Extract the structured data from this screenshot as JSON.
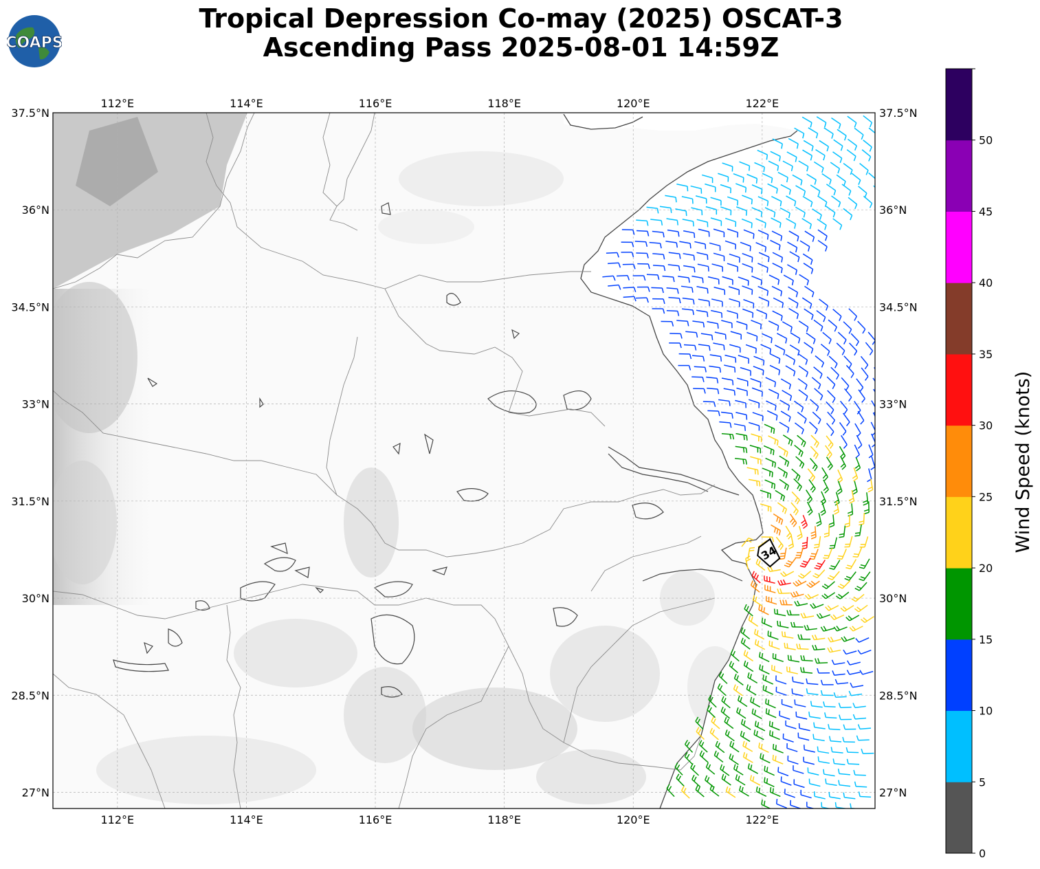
{
  "title": {
    "line1": "Tropical Depression Co-may (2025) OSCAT-3",
    "line2": "Ascending Pass 2025-08-01 14:59Z"
  },
  "logo": {
    "text": "COAPS"
  },
  "map": {
    "lon_range": [
      111.0,
      123.75
    ],
    "lat_range": [
      26.75,
      37.5
    ],
    "lon_ticks": [
      "112°E",
      "114°E",
      "116°E",
      "118°E",
      "120°E",
      "122°E"
    ],
    "lat_ticks": [
      "37.5°N",
      "36°N",
      "34.5°N",
      "33°N",
      "31.5°N",
      "30°N",
      "28.5°N",
      "27°N"
    ],
    "grid": true,
    "storm_marker": {
      "label": "34",
      "lon": 122.1,
      "lat": 30.7
    }
  },
  "colorbar": {
    "label": "Wind Speed (knots)",
    "ticks": [
      "0",
      "5",
      "10",
      "15",
      "20",
      "25",
      "30",
      "35",
      "40",
      "45",
      "50"
    ],
    "colors": [
      "#555555",
      "#00bfff",
      "#0040ff",
      "#009600",
      "#ffd21a",
      "#ff8c0a",
      "#ff1010",
      "#843c2a",
      "#ff00ff",
      "#8a00b4",
      "#2d0060"
    ]
  }
}
